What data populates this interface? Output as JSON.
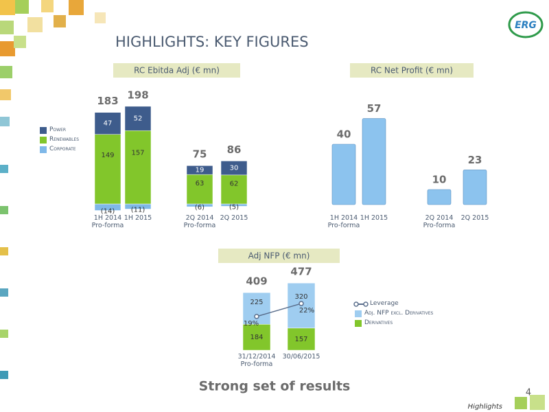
{
  "slide": {
    "title": "HIGHLIGHTS: KEY FIGURES",
    "subtitle": "Strong set of results",
    "logo": "ERG",
    "footer": "Highlights",
    "page_number": "4"
  },
  "chart_data": [
    {
      "type": "stacked_bar",
      "title": "RC Ebitda Adj (€ mn)",
      "categories": [
        "1H 2014 Pro-forma",
        "1H 2015",
        "2Q 2014 Pro-forma",
        "2Q 2015"
      ],
      "totals": [
        183,
        198,
        75,
        86
      ],
      "legend": "left",
      "series": [
        {
          "name": "Corporate",
          "color": "#7fb8e8",
          "values": [
            -14,
            -11,
            -6,
            -5
          ],
          "value_labels": [
            "(14)",
            "(11)",
            "(6)",
            "(5)"
          ]
        },
        {
          "name": "Renewables",
          "color": "#82c62b",
          "values": [
            149,
            157,
            63,
            62
          ]
        },
        {
          "name": "Power",
          "color": "#3e5c8c",
          "values": [
            47,
            52,
            19,
            30
          ]
        }
      ]
    },
    {
      "type": "bar",
      "title": "RC Net Profit (€ mn)",
      "categories": [
        "1H 2014 Pro-forma",
        "1H 2015",
        "2Q 2014 Pro-forma",
        "2Q 2015"
      ],
      "values": [
        40,
        57,
        10,
        23
      ],
      "color": "#8cc3ee"
    },
    {
      "type": "stacked_bar",
      "title": "Adj NFP (€ mn)",
      "categories": [
        "31/12/2014 Pro-forma",
        "30/06/2015"
      ],
      "totals": [
        409,
        477
      ],
      "legend": "right",
      "series": [
        {
          "name": "Derivatives",
          "color": "#82c62b",
          "values": [
            184,
            157
          ]
        },
        {
          "name": "Adj. NFP excl. Derivatives",
          "color": "#9fcdf0",
          "values": [
            225,
            320
          ]
        },
        {
          "name": "Leverage",
          "type": "line",
          "axis": "y2",
          "color": "#5a6e8c",
          "values": [
            19,
            22
          ],
          "value_labels": [
            "19%",
            "22%"
          ]
        }
      ]
    }
  ]
}
